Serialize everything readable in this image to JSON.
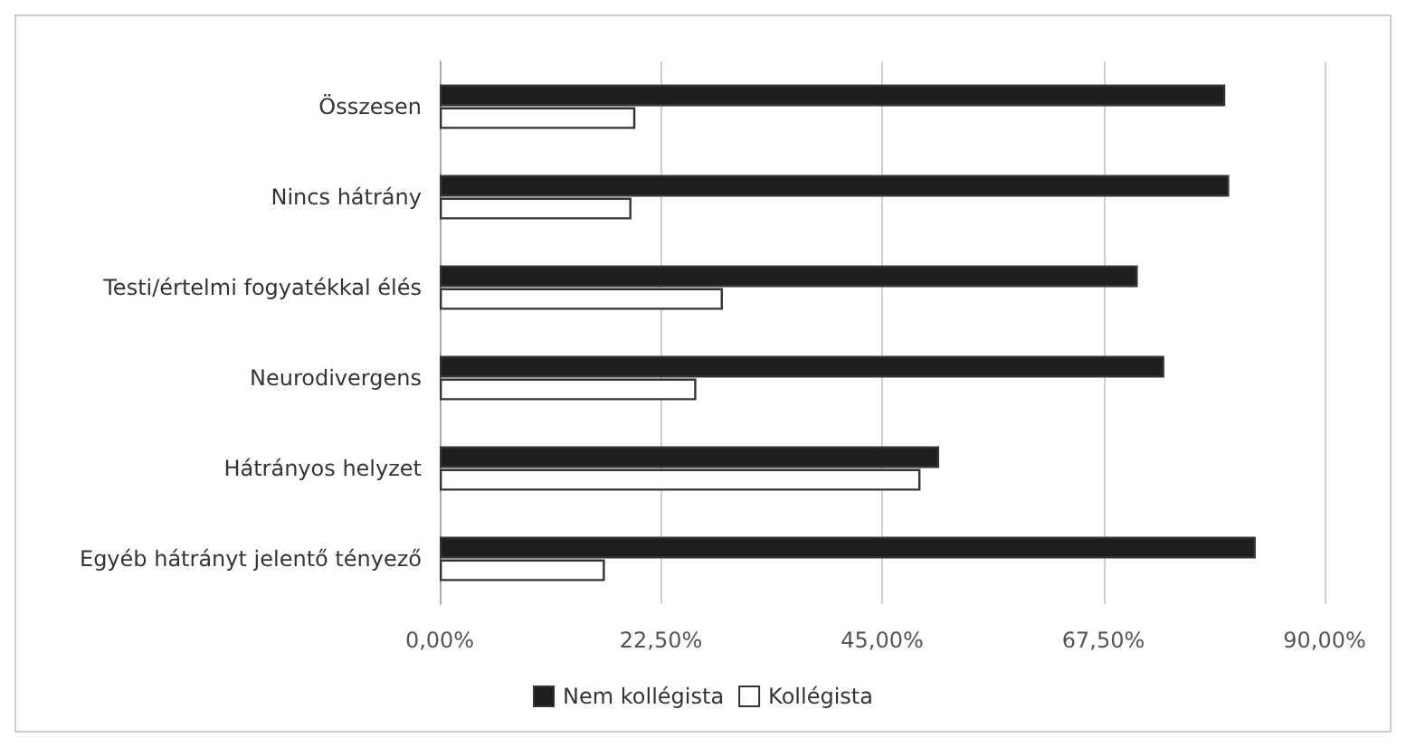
{
  "chart_data": {
    "type": "bar",
    "orientation": "horizontal",
    "categories": [
      "Összesen",
      "Nincs hátrány",
      "Testi/értelmi fogyatékkal élés",
      "Neurodivergens",
      "Hátrányos helyzet",
      "Egyéb hátrányt jelentő tényező"
    ],
    "series": [
      {
        "name": "Nem kollégista",
        "color": "#1e1e1e",
        "values": [
          79.9,
          80.3,
          71.0,
          73.7,
          50.8,
          83.0
        ]
      },
      {
        "name": "Kollégista",
        "color": "#ffffff",
        "values": [
          19.9,
          19.5,
          28.8,
          26.1,
          48.9,
          16.8
        ]
      }
    ],
    "xlim": [
      0,
      90
    ],
    "xticks": [
      {
        "value": 0,
        "label": "0,00%"
      },
      {
        "value": 22.5,
        "label": "22,50%"
      },
      {
        "value": 45,
        "label": "45,00%"
      },
      {
        "value": 67.5,
        "label": "67,50%"
      },
      {
        "value": 90,
        "label": "90,00%"
      }
    ],
    "grid": "x",
    "legend": "bottom"
  }
}
